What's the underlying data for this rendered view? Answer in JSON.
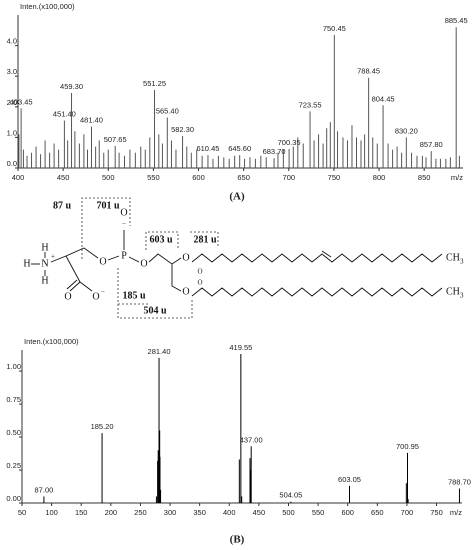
{
  "chart_data": [
    {
      "type": "bar",
      "caption": "(A)",
      "y_title": "Inten.(x100,000)",
      "x_title": "m/z",
      "color": "#555555",
      "xlim": [
        400,
        893
      ],
      "ylim": [
        0,
        5.0
      ],
      "xticks": [
        400,
        450,
        500,
        550,
        600,
        650,
        700,
        750,
        800,
        850
      ],
      "yticks": [
        {
          "value": 0,
          "label": "0.0"
        },
        {
          "value": 1,
          "label": "1.0"
        },
        {
          "value": 2,
          "label": "2.0"
        },
        {
          "value": 3,
          "label": "3.0"
        },
        {
          "value": 4,
          "label": "4.0"
        }
      ],
      "x": [
        401,
        403.45,
        406,
        410,
        415,
        420,
        425,
        430,
        435,
        440,
        445,
        451.4,
        455,
        459.3,
        463,
        468,
        473,
        477,
        481.4,
        486,
        490,
        495,
        500,
        507.65,
        512,
        518,
        524,
        530,
        536,
        541,
        546,
        551.25,
        556,
        560,
        565.4,
        570,
        575,
        582.3,
        587,
        592,
        598,
        604,
        610.45,
        616,
        622,
        628,
        634,
        640,
        645.6,
        651,
        657,
        663,
        669,
        675,
        683.7,
        688,
        694,
        700.35,
        705,
        710,
        716,
        723.55,
        728,
        733,
        738,
        742,
        746,
        750.45,
        754,
        760,
        765,
        770,
        775,
        780,
        784,
        788.45,
        793,
        798,
        804.45,
        810,
        815,
        820,
        825,
        830.2,
        836,
        842,
        848,
        852,
        857.8,
        863,
        868,
        874,
        879,
        885.45,
        889
      ],
      "values": [
        1.1,
        1.95,
        0.6,
        0.4,
        0.5,
        0.7,
        0.45,
        0.9,
        0.5,
        0.8,
        0.6,
        1.55,
        0.9,
        2.45,
        1.2,
        0.8,
        1.1,
        0.6,
        1.35,
        0.7,
        0.9,
        0.5,
        0.6,
        0.72,
        0.5,
        0.4,
        0.6,
        0.5,
        0.7,
        0.6,
        1.0,
        2.55,
        1.1,
        0.8,
        1.65,
        0.9,
        0.6,
        1.05,
        0.7,
        0.5,
        0.6,
        0.4,
        0.42,
        0.3,
        0.4,
        0.35,
        0.3,
        0.4,
        0.42,
        0.3,
        0.35,
        0.3,
        0.4,
        0.35,
        0.32,
        0.5,
        0.6,
        0.62,
        0.7,
        1.0,
        0.8,
        1.85,
        0.9,
        1.1,
        0.8,
        1.3,
        1.5,
        4.35,
        1.2,
        1.0,
        0.9,
        1.4,
        1.0,
        0.9,
        1.1,
        2.95,
        1.0,
        0.8,
        2.05,
        0.8,
        0.6,
        0.7,
        0.5,
        1.0,
        0.5,
        0.4,
        0.4,
        0.35,
        0.55,
        0.3,
        0.3,
        0.3,
        0.35,
        4.6,
        0.4
      ],
      "x_labels": [
        null,
        "403.45",
        null,
        null,
        null,
        null,
        null,
        null,
        null,
        null,
        null,
        "451.40",
        null,
        "459.30",
        null,
        null,
        null,
        null,
        "481.40",
        null,
        null,
        null,
        null,
        "507.65",
        null,
        null,
        null,
        null,
        null,
        null,
        null,
        "551.25",
        null,
        null,
        "565.40",
        null,
        null,
        "582.30",
        null,
        null,
        null,
        null,
        "610.45",
        null,
        null,
        null,
        null,
        null,
        "645.60",
        null,
        null,
        null,
        null,
        null,
        "683.70",
        null,
        null,
        "700.35",
        null,
        null,
        null,
        "723.55",
        null,
        null,
        null,
        null,
        null,
        "750.45",
        null,
        null,
        null,
        null,
        null,
        null,
        null,
        "788.45",
        null,
        null,
        "804.45",
        null,
        null,
        null,
        null,
        "830.20",
        null,
        null,
        null,
        null,
        "857.80",
        null,
        null,
        null,
        null,
        "885.45",
        null
      ]
    },
    {
      "type": "bar",
      "caption": "(B)",
      "y_title": "Inten.(x100,000)",
      "x_title": "m/z",
      "color": "#000000",
      "xlim": [
        50,
        793
      ],
      "ylim": [
        0,
        1.16
      ],
      "xticks": [
        50,
        100,
        150,
        200,
        250,
        300,
        350,
        400,
        450,
        500,
        550,
        600,
        650,
        700,
        750
      ],
      "yticks": [
        {
          "value": 0,
          "label": "0.00"
        },
        {
          "value": 0.25,
          "label": "0.25"
        },
        {
          "value": 0.5,
          "label": "0.50"
        },
        {
          "value": 0.75,
          "label": "0.75"
        },
        {
          "value": 1,
          "label": "1.00"
        }
      ],
      "x": [
        87.0,
        185.2,
        277,
        279,
        280,
        281.4,
        282.5,
        283,
        284,
        417,
        419.55,
        421,
        435,
        436,
        437.0,
        504.05,
        603.05,
        699,
        700.95,
        702,
        788.7
      ],
      "values": [
        0.05,
        0.53,
        0.05,
        0.32,
        0.4,
        1.1,
        0.55,
        0.35,
        0.1,
        0.33,
        1.13,
        0.05,
        0.34,
        0.25,
        0.43,
        0.01,
        0.13,
        0.15,
        0.38,
        0.03,
        0.11
      ],
      "x_labels": [
        "87.00",
        "185.20",
        null,
        null,
        null,
        "281.40",
        null,
        null,
        null,
        null,
        "419.55",
        null,
        null,
        null,
        "437.00",
        "504.05",
        "603.05",
        null,
        "700.95",
        null,
        "788.70"
      ]
    }
  ],
  "structure": {
    "fragments": [
      "87 u",
      "701 u",
      "603 u",
      "281 u",
      "185 u",
      "504 u"
    ],
    "atoms": [
      "H",
      "H",
      "N",
      "H",
      "O",
      "O",
      "O",
      "P",
      "O",
      "O",
      "O",
      "O",
      "O",
      "O",
      "CH",
      "CH"
    ],
    "charges": [
      "+",
      "−",
      "−"
    ],
    "subscripts": [
      "3",
      "3"
    ]
  }
}
